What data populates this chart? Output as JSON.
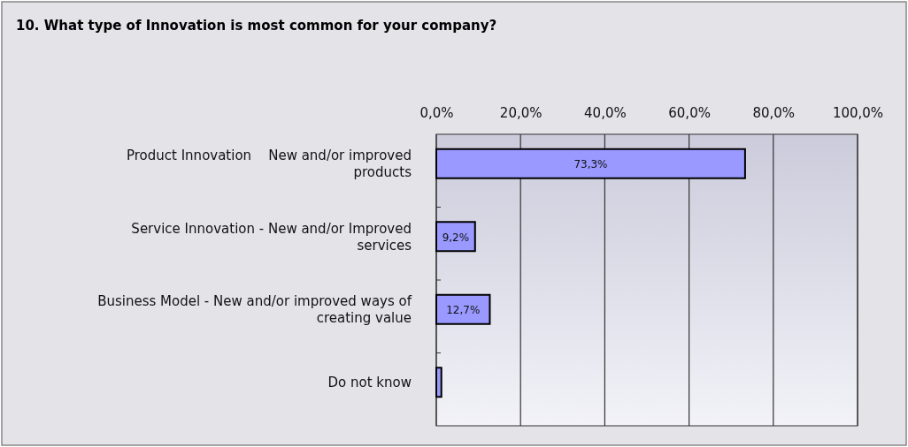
{
  "chart_data": {
    "type": "bar",
    "orientation": "horizontal",
    "title": "10. What type of Innovation is most common for your company?",
    "categories": [
      "Product Innovation    New and/or improved products",
      "Service Innovation - New and/or Improved services",
      "Business Model - New and/or improved ways of creating value",
      "Do not know"
    ],
    "values": [
      73.3,
      9.2,
      12.7,
      1.2
    ],
    "value_labels": [
      "73,3%",
      "9,2%",
      "12,7%",
      null
    ],
    "color": "#9999ff",
    "xlim": [
      0,
      100
    ],
    "xticks": [
      {
        "value": 0,
        "label": "0,0%"
      },
      {
        "value": 20,
        "label": "20,0%"
      },
      {
        "value": 40,
        "label": "40,0%"
      },
      {
        "value": 60,
        "label": "60,0%"
      },
      {
        "value": 80,
        "label": "80,0%"
      },
      {
        "value": 100,
        "label": "100,0%"
      }
    ],
    "grid": "x"
  }
}
